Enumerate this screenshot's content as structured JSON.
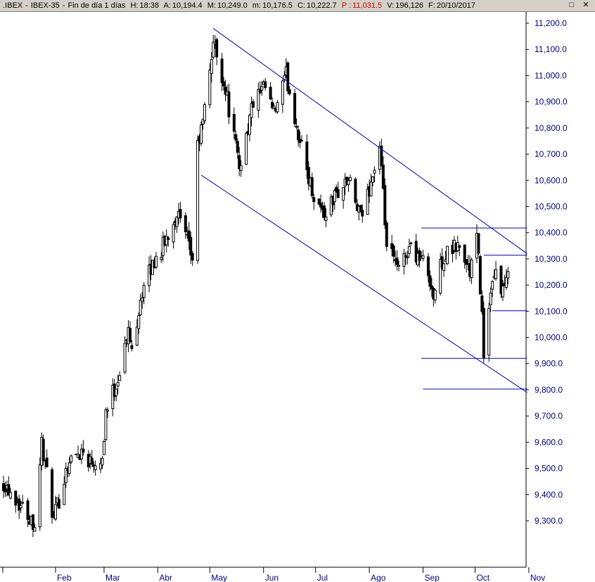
{
  "header": {
    "symbol": ".IBEX",
    "name": "IBEX-35",
    "period": "Fin de día 1 días",
    "hour_label": "H:",
    "hour": "18:38",
    "open_label": "A:",
    "open": "10,194.4",
    "high_label": "M:",
    "high": "10,249.0",
    "low_label": "m:",
    "low": "10,176.5",
    "close_label": "C:",
    "close": "10,222.7",
    "p_label": "P :",
    "p_value": "11,031.5",
    "volume_label": "V:",
    "volume": "196,126",
    "date_label": "F:",
    "date": "20/10/2017",
    "colors": {
      "p_value": "#d40000"
    }
  },
  "window_controls": {
    "close_icon": "✕",
    "maximize_icon": "□"
  },
  "chart_data": {
    "type": "candlestick",
    "title": "",
    "ylim": [
      9220,
      11260
    ],
    "y_ticks": [
      "9,300.0",
      "9,400.0",
      "9,500.0",
      "9,600.0",
      "9,700.0",
      "9,800.0",
      "9,900.0",
      "10,000.0",
      "10,100.0",
      "10,200.0",
      "10,300.0",
      "10,400.0",
      "10,500.0",
      "10,600.0",
      "10,700.0",
      "10,800.0",
      "10,900.0",
      "11,000.0",
      "11,100.0",
      "11,200.0"
    ],
    "y_tick_values": [
      9300,
      9400,
      9500,
      9600,
      9700,
      9800,
      9900,
      10000,
      10100,
      10200,
      10300,
      10400,
      10500,
      10600,
      10700,
      10800,
      10900,
      11000,
      11100,
      11200
    ],
    "months": [
      "Feb",
      "Mar",
      "Abr",
      "May",
      "Jun",
      "Jul",
      "Ago",
      "Sep",
      "Oct",
      "Nov"
    ],
    "colors": {
      "axis_labels": "#000080",
      "trendlines": "#0000cc",
      "candles": "#000000"
    },
    "anchor_points": [
      {
        "date": "2017-01-02",
        "value": 9450
      },
      {
        "date": "2017-01-20",
        "value": 9290
      },
      {
        "date": "2017-01-24",
        "value": 9600
      },
      {
        "date": "2017-01-31",
        "value": 9300
      },
      {
        "date": "2017-02-08",
        "value": 9520
      },
      {
        "date": "2017-02-16",
        "value": 9570
      },
      {
        "date": "2017-02-21",
        "value": 9530
      },
      {
        "date": "2017-02-28",
        "value": 9540
      },
      {
        "date": "2017-03-02",
        "value": 9720
      },
      {
        "date": "2017-03-08",
        "value": 9820
      },
      {
        "date": "2017-03-15",
        "value": 10020
      },
      {
        "date": "2017-03-17",
        "value": 9950
      },
      {
        "date": "2017-03-22",
        "value": 10150
      },
      {
        "date": "2017-03-29",
        "value": 10280
      },
      {
        "date": "2017-04-05",
        "value": 10360
      },
      {
        "date": "2017-04-12",
        "value": 10480
      },
      {
        "date": "2017-04-18",
        "value": 10360
      },
      {
        "date": "2017-04-21",
        "value": 10300
      },
      {
        "date": "2017-04-24",
        "value": 10730
      },
      {
        "date": "2017-04-27",
        "value": 10820
      },
      {
        "date": "2017-05-03",
        "value": 11130
      },
      {
        "date": "2017-05-10",
        "value": 10950
      },
      {
        "date": "2017-05-18",
        "value": 10650
      },
      {
        "date": "2017-05-26",
        "value": 10900
      },
      {
        "date": "2017-06-02",
        "value": 10950
      },
      {
        "date": "2017-06-07",
        "value": 10850
      },
      {
        "date": "2017-06-14",
        "value": 11000
      },
      {
        "date": "2017-06-22",
        "value": 10750
      },
      {
        "date": "2017-06-29",
        "value": 10560
      },
      {
        "date": "2017-07-06",
        "value": 10470
      },
      {
        "date": "2017-07-13",
        "value": 10550
      },
      {
        "date": "2017-07-20",
        "value": 10600
      },
      {
        "date": "2017-07-27",
        "value": 10450
      },
      {
        "date": "2017-08-03",
        "value": 10620
      },
      {
        "date": "2017-08-07",
        "value": 10720
      },
      {
        "date": "2017-08-11",
        "value": 10350
      },
      {
        "date": "2017-08-18",
        "value": 10250
      },
      {
        "date": "2017-08-24",
        "value": 10350
      },
      {
        "date": "2017-08-31",
        "value": 10300
      },
      {
        "date": "2017-09-05",
        "value": 10230
      },
      {
        "date": "2017-09-07",
        "value": 10150
      },
      {
        "date": "2017-09-12",
        "value": 10300
      },
      {
        "date": "2017-09-21",
        "value": 10350
      },
      {
        "date": "2017-09-28",
        "value": 10250
      },
      {
        "date": "2017-10-02",
        "value": 10380
      },
      {
        "date": "2017-10-04",
        "value": 10200
      },
      {
        "date": "2017-10-06",
        "value": 9950
      },
      {
        "date": "2017-10-10",
        "value": 10150
      },
      {
        "date": "2017-10-13",
        "value": 10250
      },
      {
        "date": "2017-10-17",
        "value": 10180
      },
      {
        "date": "2017-10-20",
        "value": 10222.7
      }
    ],
    "trendlines": [
      {
        "kind": "channel-upper",
        "start": {
          "date": "2017-05-03",
          "value": 11180
        },
        "end": {
          "date": "2017-10-31",
          "value": 10320
        }
      },
      {
        "kind": "channel-lower",
        "start": {
          "date": "2017-04-26",
          "value": 10620
        },
        "end": {
          "date": "2017-10-31",
          "value": 9790
        }
      },
      {
        "kind": "horizontal",
        "value": 10418,
        "start_date": "2017-08-31",
        "end_date": "2017-10-31"
      },
      {
        "kind": "horizontal",
        "value": 10314,
        "start_date": "2017-10-06",
        "end_date": "2017-10-31"
      },
      {
        "kind": "horizontal",
        "value": 10102,
        "start_date": "2017-10-11",
        "end_date": "2017-10-31"
      },
      {
        "kind": "horizontal",
        "value": 9920,
        "start_date": "2017-08-31",
        "end_date": "2017-10-31"
      },
      {
        "kind": "horizontal",
        "value": 9803,
        "start_date": "2017-09-01",
        "end_date": "2017-10-31"
      }
    ]
  }
}
